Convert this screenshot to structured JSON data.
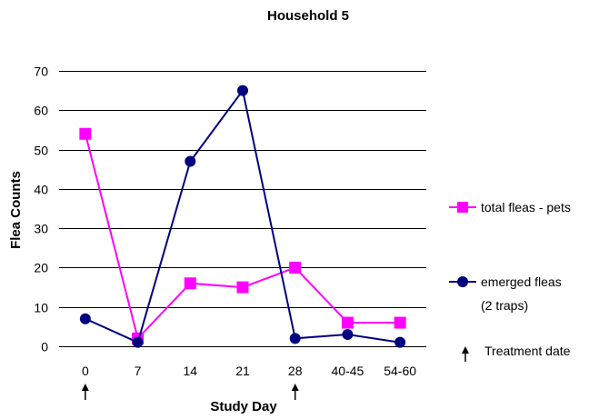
{
  "chart_data": {
    "type": "line",
    "title": "Household 5",
    "xlabel": "Study Day",
    "ylabel": "Flea Counts",
    "categories": [
      "0",
      "7",
      "14",
      "21",
      "28",
      "40-45",
      "54-60"
    ],
    "ylim": [
      0,
      70
    ],
    "yticks": [
      0,
      10,
      20,
      30,
      40,
      50,
      60,
      70
    ],
    "grid": true,
    "legend_position": "right",
    "series": [
      {
        "name": "total fleas - pets",
        "values": [
          54,
          2,
          16,
          15,
          20,
          6,
          6
        ],
        "color": "#ff00ff",
        "marker": "square"
      },
      {
        "name_lines": [
          "emerged fleas",
          "(2 traps)"
        ],
        "values": [
          7,
          1,
          47,
          65,
          2,
          3,
          1
        ],
        "color": "#000080",
        "marker": "circle"
      }
    ],
    "annotation": {
      "label": "Treatment date",
      "icon": "up-arrow-icon",
      "category_indices": [
        0,
        4
      ]
    }
  }
}
